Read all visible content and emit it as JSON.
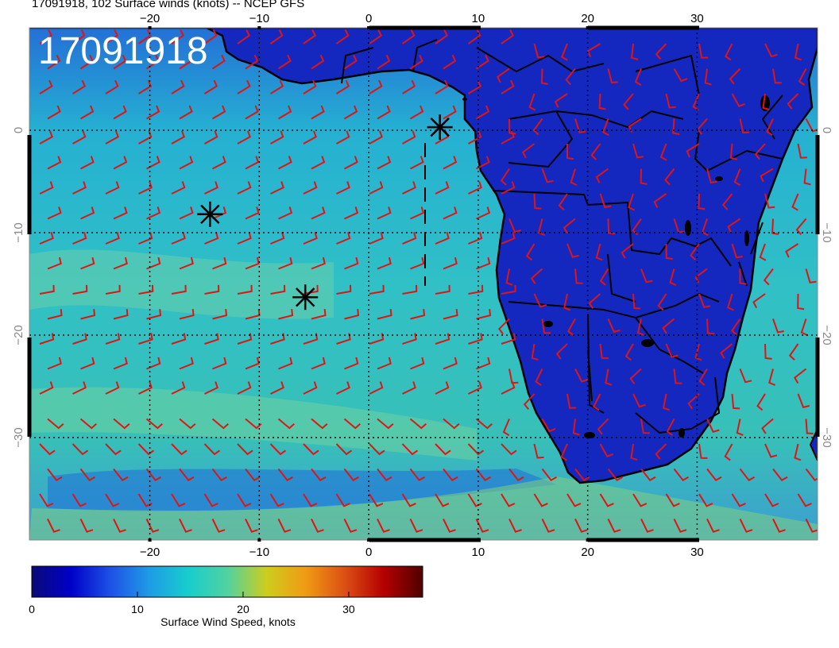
{
  "title": "17091918, 102 Surface winds (knots) -- NCEP GFS",
  "stamp": "17091918",
  "x_ticks_top": [
    "−20",
    "−10",
    "0",
    "10",
    "20",
    "30"
  ],
  "x_ticks_bottom": [
    "−20",
    "−10",
    "0",
    "10",
    "20",
    "30"
  ],
  "y_ticks": [
    "0",
    "−10",
    "−20",
    "−30"
  ],
  "colorbar": {
    "label": "Surface Wind Speed, knots",
    "ticks": [
      "0",
      "10",
      "20",
      "30"
    ],
    "range": [
      0,
      37
    ],
    "colors": [
      "#0a0a78",
      "#0000c8",
      "#1e50e6",
      "#1e9be6",
      "#18cdcd",
      "#50d2a0",
      "#cdcd1e",
      "#f09b14",
      "#dc5014",
      "#b40000",
      "#500000"
    ]
  },
  "map": {
    "lon_range": [
      -31,
      41
    ],
    "lat_range": [
      -40,
      10
    ],
    "ocean_color": "#2eb8c8",
    "land_color": "#1428c0",
    "barb_color": "#e01414",
    "marker_icon": "asterisk-marker",
    "markers": [
      {
        "lon": 6.5,
        "lat": 0.3
      },
      {
        "lon": -14.5,
        "lat": -8.2
      },
      {
        "lon": -5.8,
        "lat": -16.3
      }
    ]
  }
}
